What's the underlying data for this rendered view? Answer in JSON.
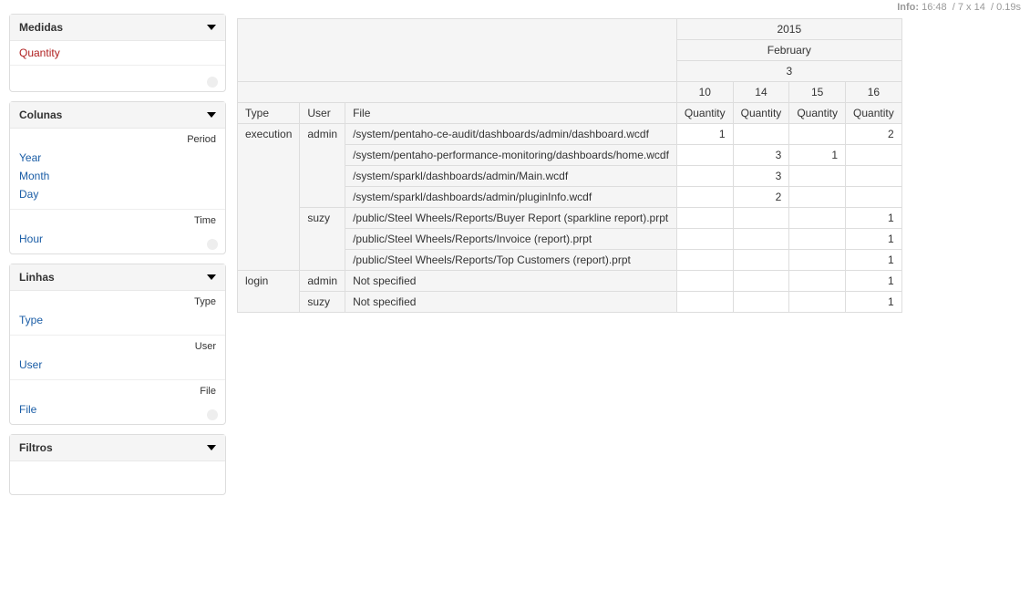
{
  "info": {
    "label": "Info:",
    "time": "16:48",
    "sep1": "/",
    "dims": "7 x 14",
    "sep2": "/",
    "duration": "0.19s"
  },
  "panels": {
    "measures": {
      "title": "Medidas",
      "items": [
        "Quantity"
      ]
    },
    "columns": {
      "title": "Colunas",
      "groups": [
        {
          "label": "Period",
          "items": [
            "Year",
            "Month",
            "Day"
          ]
        },
        {
          "label": "Time",
          "items": [
            "Hour"
          ]
        }
      ]
    },
    "rows": {
      "title": "Linhas",
      "groups": [
        {
          "label": "Type",
          "items": [
            "Type"
          ]
        },
        {
          "label": "User",
          "items": [
            "User"
          ]
        },
        {
          "label": "File",
          "items": [
            "File"
          ]
        }
      ]
    },
    "filters": {
      "title": "Filtros"
    }
  },
  "pivot": {
    "year": "2015",
    "month": "February",
    "day": "3",
    "hours": [
      "10",
      "14",
      "15",
      "16"
    ],
    "measure_label": "Quantity",
    "row_headers": [
      "Type",
      "User",
      "File"
    ],
    "rows": [
      {
        "type": "execution",
        "user": "admin",
        "file": "/system/pentaho-ce-audit/dashboards/admin/dashboard.wcdf",
        "v": [
          "1",
          "",
          "",
          "2"
        ],
        "type_rowspan": 7,
        "user_rowspan": 4
      },
      {
        "file": "/system/pentaho-performance-monitoring/dashboards/home.wcdf",
        "v": [
          "",
          "3",
          "1",
          ""
        ]
      },
      {
        "file": "/system/sparkl/dashboards/admin/Main.wcdf",
        "v": [
          "",
          "3",
          "",
          ""
        ]
      },
      {
        "file": "/system/sparkl/dashboards/admin/pluginInfo.wcdf",
        "v": [
          "",
          "2",
          "",
          ""
        ]
      },
      {
        "user": "suzy",
        "file": "/public/Steel Wheels/Reports/Buyer Report (sparkline report).prpt",
        "v": [
          "",
          "",
          "",
          "1"
        ],
        "user_rowspan": 3
      },
      {
        "file": "/public/Steel Wheels/Reports/Invoice (report).prpt",
        "v": [
          "",
          "",
          "",
          "1"
        ]
      },
      {
        "file": "/public/Steel Wheels/Reports/Top Customers (report).prpt",
        "v": [
          "",
          "",
          "",
          "1"
        ]
      },
      {
        "type": "login",
        "user": "admin",
        "file": "Not specified",
        "v": [
          "",
          "",
          "",
          "1"
        ],
        "type_rowspan": 2,
        "user_rowspan": 1
      },
      {
        "user": "suzy",
        "file": "Not specified",
        "v": [
          "",
          "",
          "",
          "1"
        ],
        "user_rowspan": 1
      }
    ]
  }
}
